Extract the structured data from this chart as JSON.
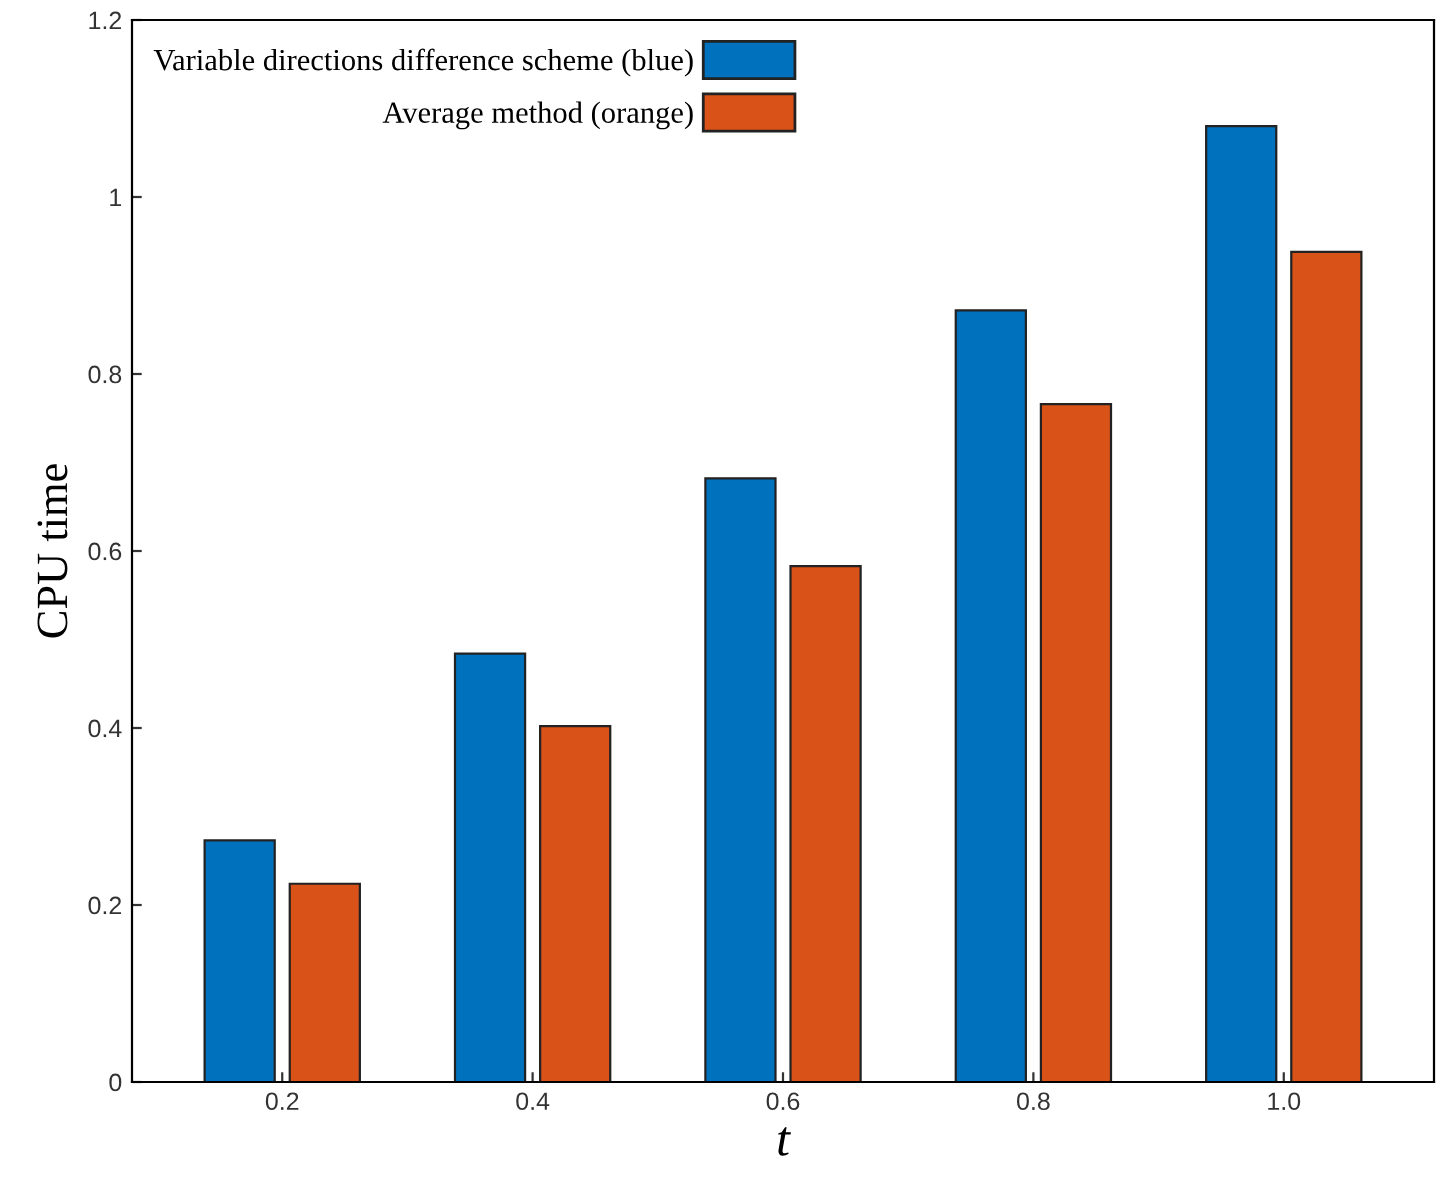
{
  "chart_data": {
    "type": "bar",
    "xlabel": "t",
    "ylabel": "CPU time",
    "categories": [
      "0.2",
      "0.4",
      "0.6",
      "0.8",
      "1.0"
    ],
    "series": [
      {
        "name": "Variable directions difference scheme (blue)",
        "color": "#0072bd",
        "values": [
          0.273,
          0.484,
          0.682,
          0.872,
          1.08
        ]
      },
      {
        "name": "Average method (orange)",
        "color": "#d95319",
        "values": [
          0.224,
          0.402,
          0.583,
          0.766,
          0.938
        ]
      }
    ],
    "ylim": [
      0,
      1.2
    ],
    "yticks": [
      0,
      0.2,
      0.4,
      0.6,
      0.8,
      1,
      1.2
    ],
    "grid": false,
    "legend": "top left"
  }
}
